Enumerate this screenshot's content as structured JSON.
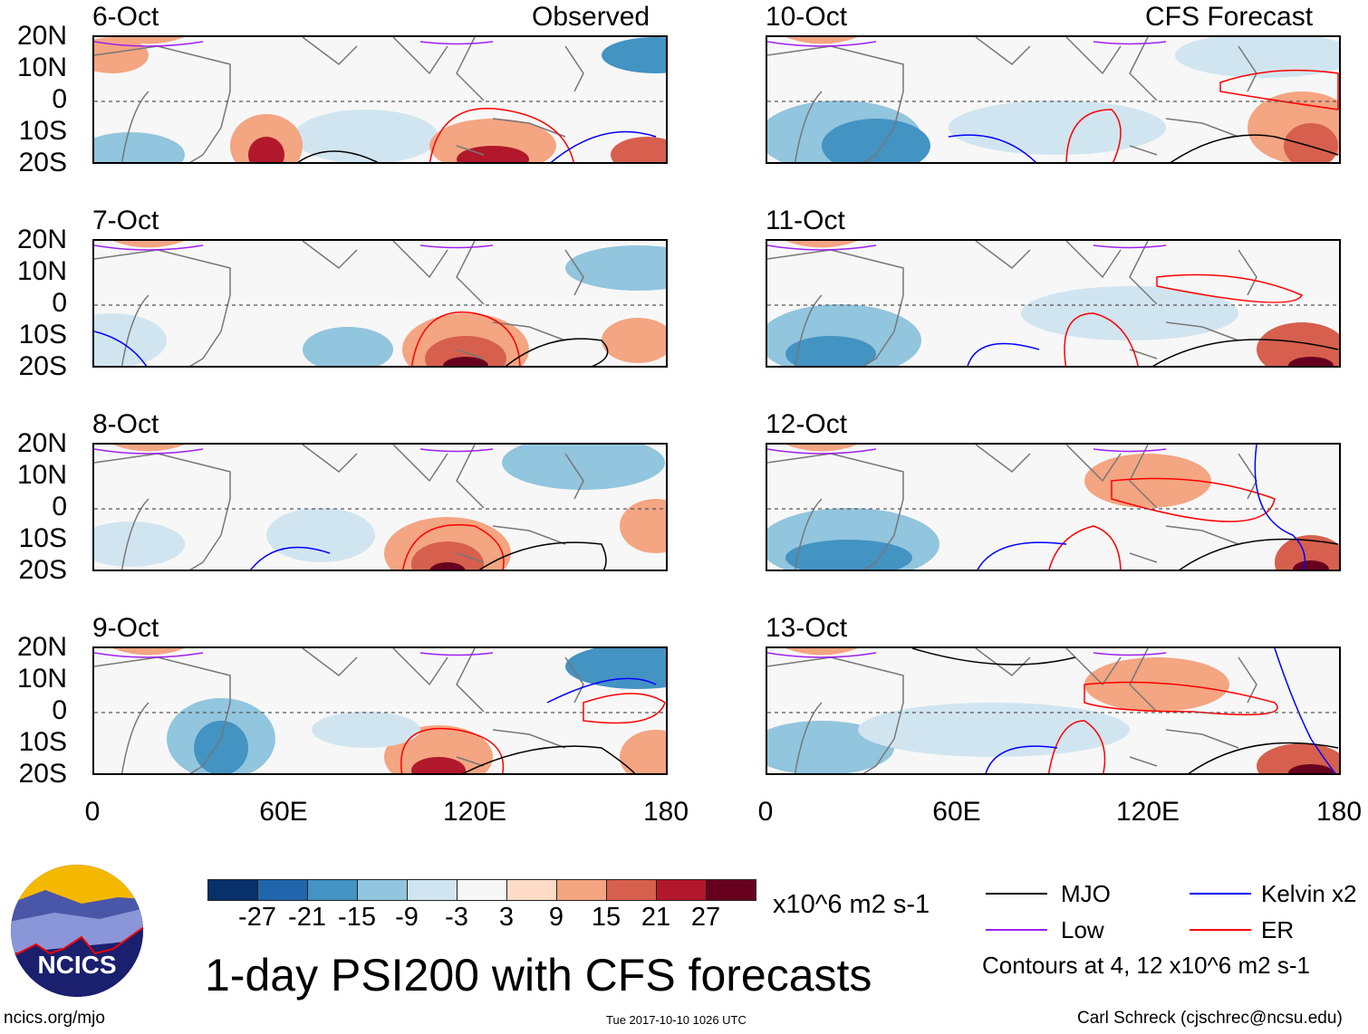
{
  "title": "1-day PSI200 with CFS forecasts",
  "columns": {
    "left_label": "Observed",
    "right_label": "CFS Forecast"
  },
  "panels": [
    {
      "date": "6-Oct",
      "source": "Observed"
    },
    {
      "date": "7-Oct",
      "source": "Observed"
    },
    {
      "date": "8-Oct",
      "source": "Observed"
    },
    {
      "date": "9-Oct",
      "source": "Observed"
    },
    {
      "date": "10-Oct",
      "source": "CFS Forecast"
    },
    {
      "date": "11-Oct",
      "source": "CFS Forecast"
    },
    {
      "date": "12-Oct",
      "source": "CFS Forecast"
    },
    {
      "date": "13-Oct",
      "source": "CFS Forecast"
    }
  ],
  "y_ticks": [
    "20N",
    "10N",
    "0",
    "10S",
    "20S"
  ],
  "x_ticks": [
    "0",
    "60E",
    "120E",
    "180"
  ],
  "colorbar": {
    "labels": [
      "-27",
      "-21",
      "-15",
      "-9",
      "-3",
      "3",
      "9",
      "15",
      "21",
      "27"
    ],
    "colors": [
      "#08306b",
      "#2166ac",
      "#4393c3",
      "#92c5de",
      "#d1e5f0",
      "#f7f7f7",
      "#fddbc7",
      "#f4a582",
      "#d6604d",
      "#b2182b",
      "#67001f"
    ],
    "units": "x10^6 m2 s-1"
  },
  "legend": {
    "items": [
      {
        "label": "MJO",
        "color": "#000000"
      },
      {
        "label": "Kelvin x2",
        "color": "#0000ff"
      },
      {
        "label": "Low",
        "color": "#a020f0"
      },
      {
        "label": "ER",
        "color": "#ff0000"
      }
    ],
    "contour_note": "Contours at 4, 12 x10^6 m2 s-1"
  },
  "logo": {
    "text": "NCICS"
  },
  "footer": {
    "url": "ncics.org/mjo",
    "timestamp": "Tue 2017-10-10 1026 UTC",
    "credit": "Carl Schreck (cjschrec@ncsu.edu)"
  }
}
